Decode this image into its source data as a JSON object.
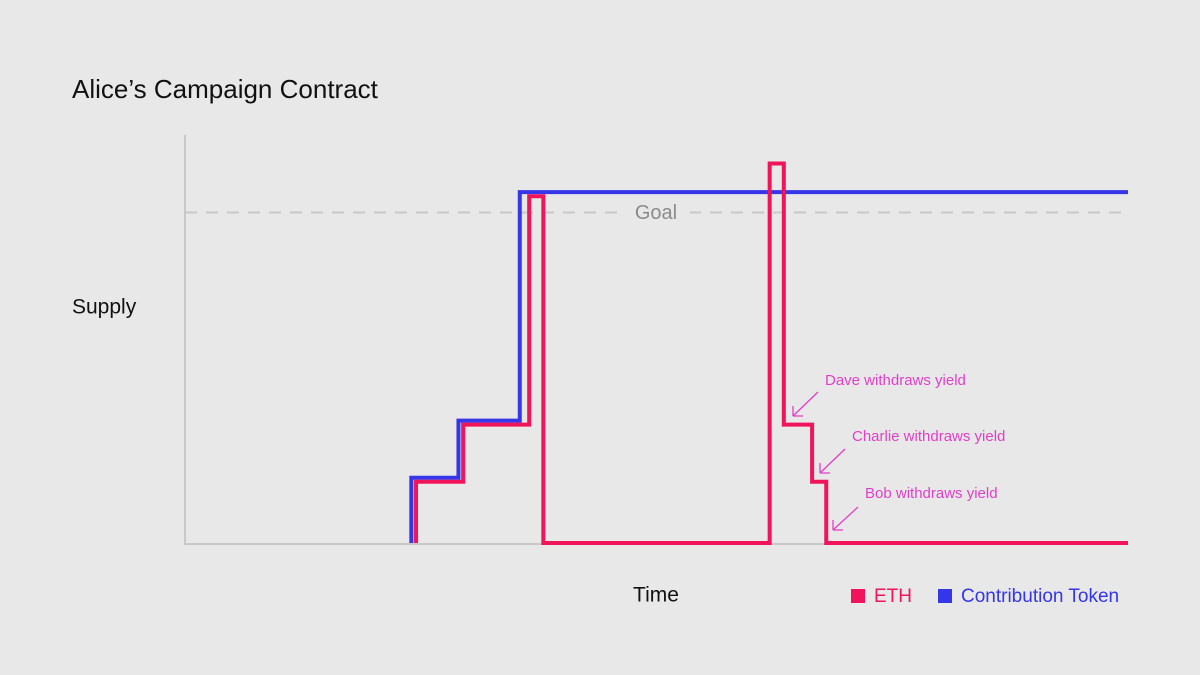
{
  "chart_data": {
    "type": "step",
    "title": "Alice’s Campaign Contract",
    "x_label": "Time",
    "y_label": "Supply",
    "xlim": [
      0,
      100
    ],
    "ylim": [
      0,
      100
    ],
    "goal": {
      "label": "Goal",
      "value": 81
    },
    "series": [
      {
        "name": "Contribution Token",
        "color": "#3535ea",
        "x": [
          24,
          24,
          29,
          35.5,
          100
        ],
        "values": [
          0,
          16,
          30,
          86,
          86
        ]
      },
      {
        "name": "ETH",
        "color": "#f0145a",
        "x": [
          24.5,
          24.5,
          29.5,
          36.5,
          38,
          62,
          63.5,
          66.5,
          68,
          100
        ],
        "values": [
          0,
          15,
          29,
          85,
          0,
          93,
          29,
          15,
          0,
          0
        ]
      }
    ],
    "legend_order": [
      1,
      0
    ],
    "annotations": [
      "Dave withdraws yield",
      "Charlie withdraws yield",
      "Bob withdraws yield"
    ]
  }
}
